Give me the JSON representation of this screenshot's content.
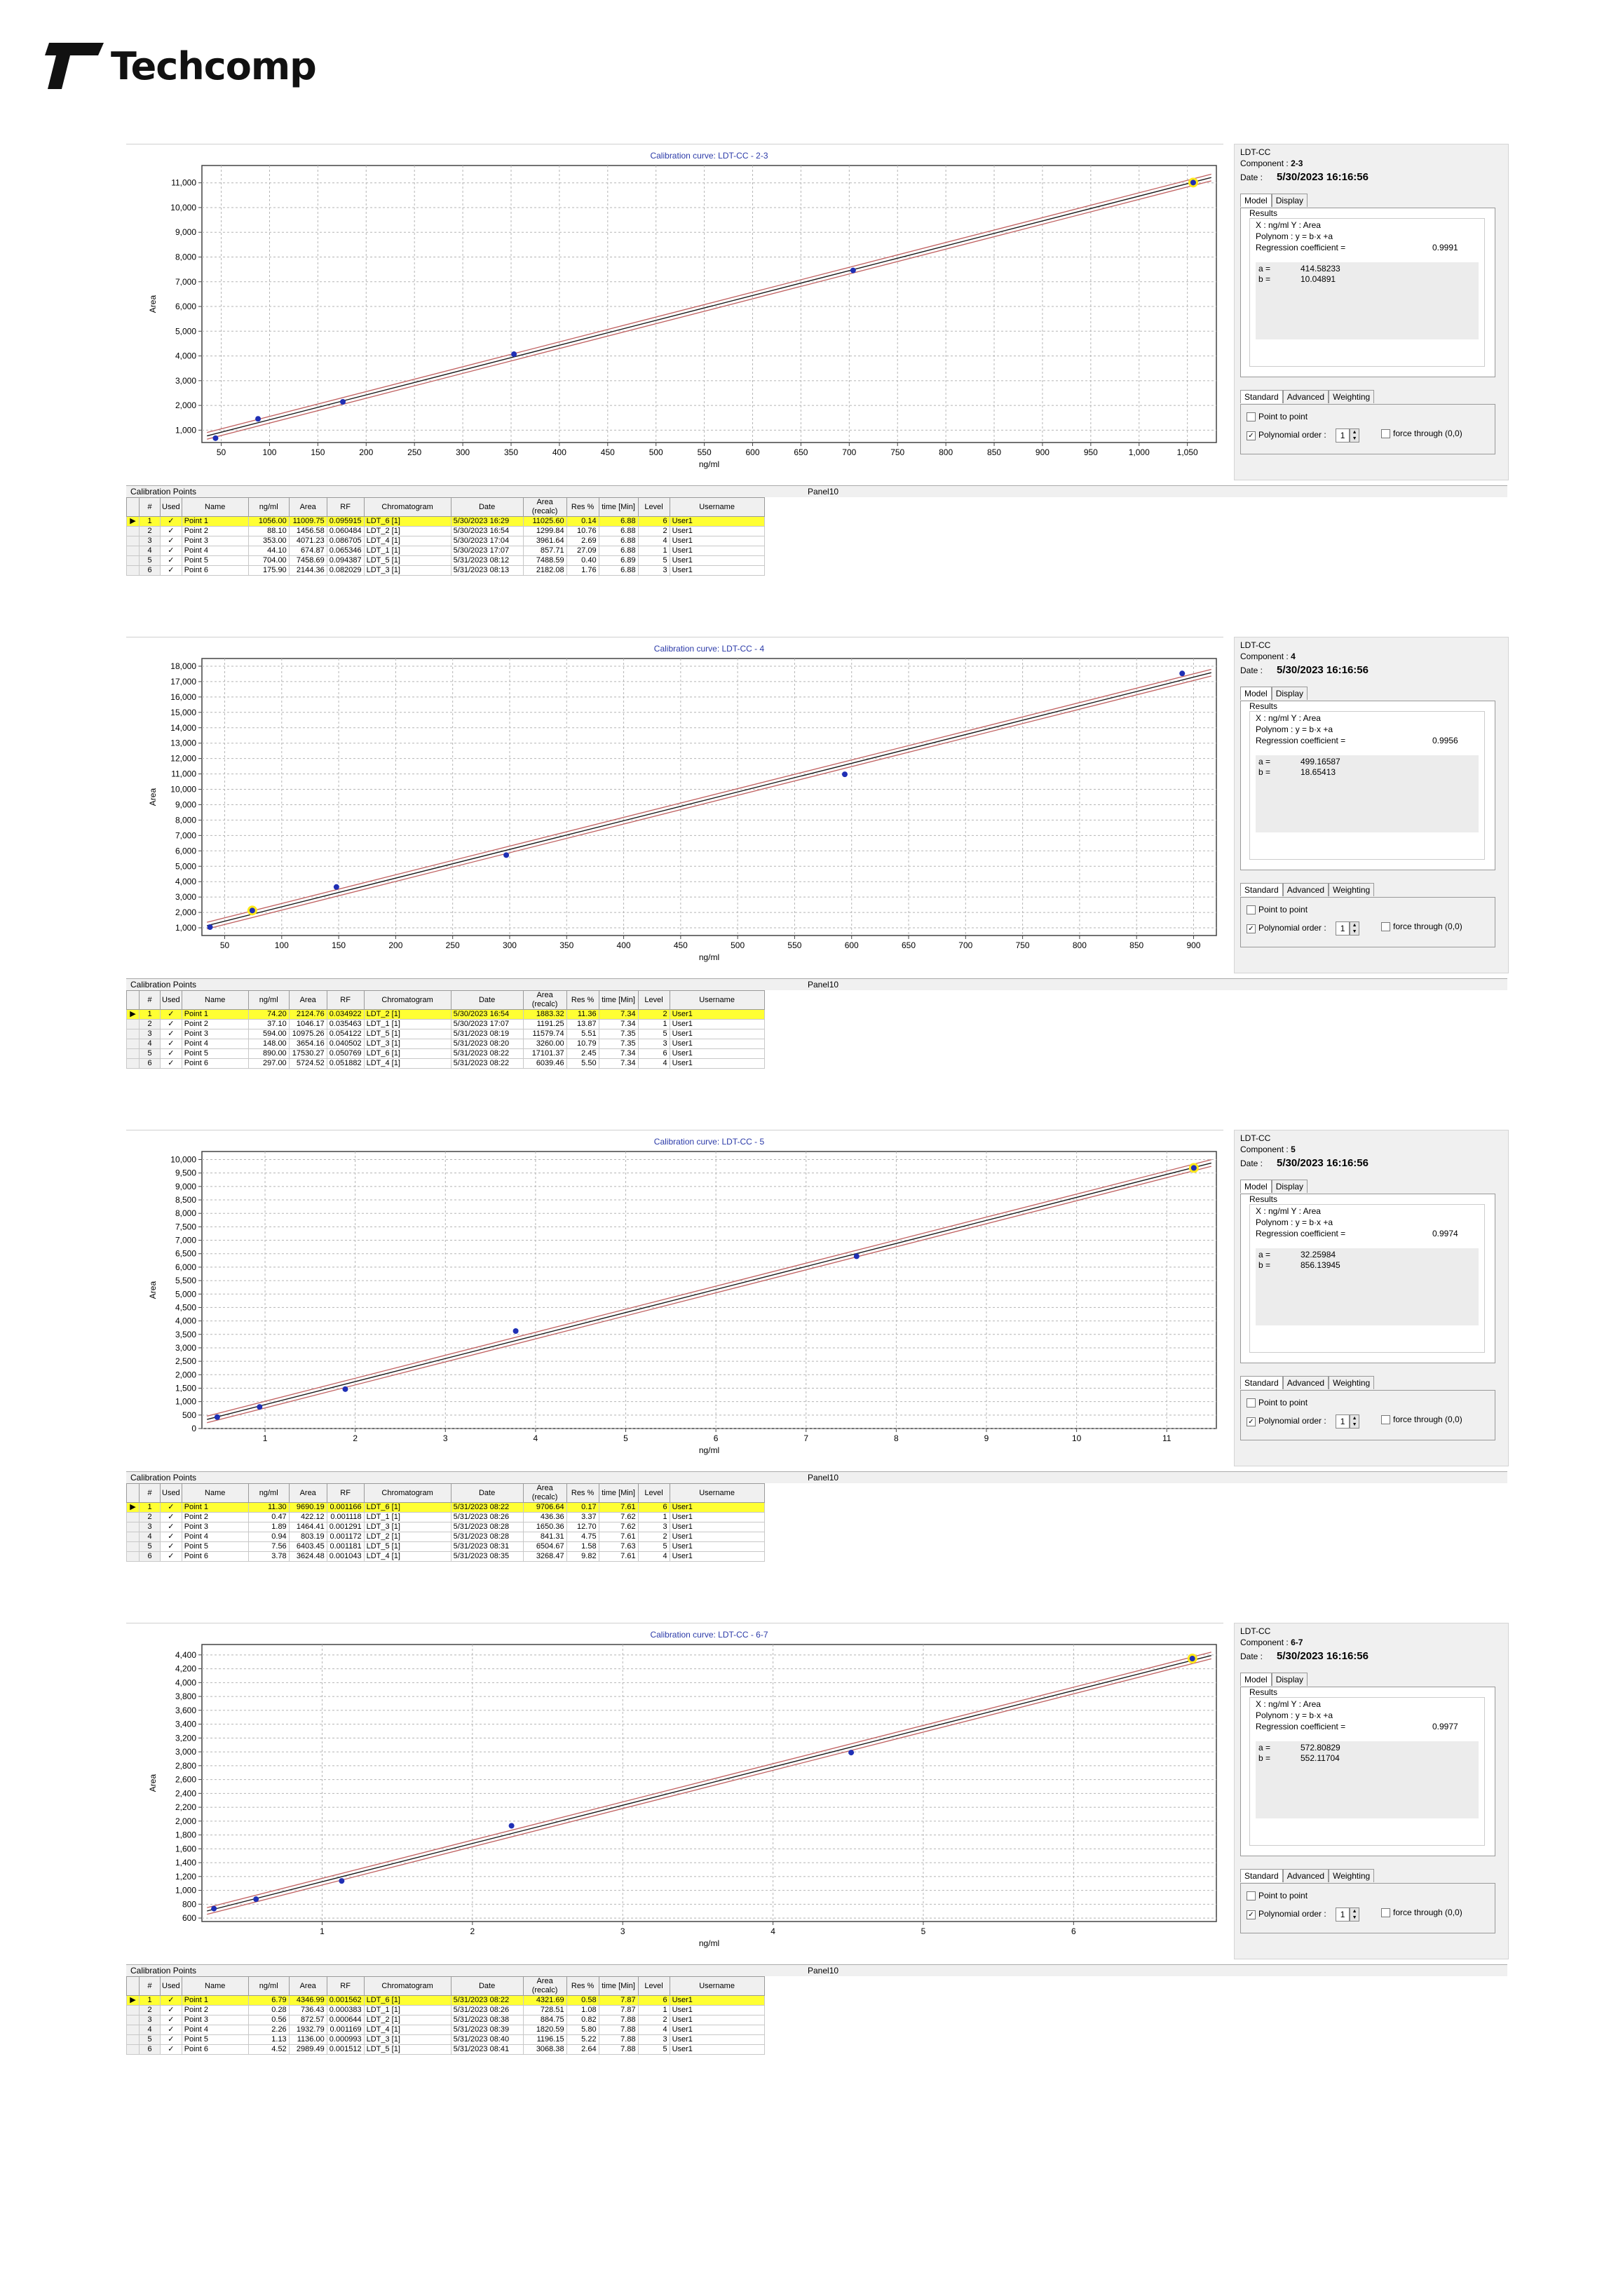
{
  "brand": {
    "name": "Techcomp"
  },
  "columns": [
    "#",
    "Used",
    "Name",
    "ng/ml",
    "Area",
    "RF",
    "Chromatogram",
    "Date",
    "Area (recalc)",
    "Res %",
    "time [Min]",
    "Level",
    "Username"
  ],
  "labels": {
    "calibration_points": "Calibration Points",
    "panel": "Panel10",
    "header": "LDT-CC",
    "component_prefix": "Component :",
    "date_prefix": "Date :",
    "tab_model": "Model",
    "tab_display": "Display",
    "results": "Results",
    "axes": "X : ng/ml   Y : Area",
    "polynom": "Polynom : y = b·x +a",
    "regression_label": "Regression coefficient =",
    "a_label": "a =",
    "b_label": "b =",
    "tab_standard": "Standard",
    "tab_advanced": "Advanced",
    "tab_weighting": "Weighting",
    "point_to_point": "Point to point",
    "polynomial_order": "Polynomial order :",
    "force_through": "force through (0,0)",
    "order_value": "1"
  },
  "blocks": [
    {
      "component": "2-3",
      "date": "5/30/2023 16:16:56",
      "regression": "0.9991",
      "a": "414.58233",
      "b": "10.04891",
      "chart_data": {
        "type": "scatter",
        "title": "Calibration curve: LDT-CC - 2-3",
        "xlabel": "ng/ml",
        "ylabel": "Area",
        "xlim": [
          30,
          1080
        ],
        "ylim": [
          500,
          11700
        ],
        "xticks": [
          50,
          100,
          150,
          200,
          250,
          300,
          350,
          400,
          450,
          500,
          550,
          600,
          650,
          700,
          750,
          800,
          850,
          900,
          950,
          1000,
          1050
        ],
        "yticks": [
          1000,
          2000,
          3000,
          4000,
          5000,
          6000,
          7000,
          8000,
          9000,
          10000,
          11000
        ],
        "grid": true,
        "fit": {
          "a": 414.58233,
          "b": 10.04891
        },
        "points": [
          {
            "x": 1056.0,
            "y": 11009.75,
            "selected": true
          },
          {
            "x": 88.1,
            "y": 1456.58,
            "selected": false
          },
          {
            "x": 353.0,
            "y": 4071.23,
            "selected": false
          },
          {
            "x": 44.1,
            "y": 674.87,
            "selected": false
          },
          {
            "x": 704.0,
            "y": 7458.69,
            "selected": false
          },
          {
            "x": 175.9,
            "y": 2144.36,
            "selected": false
          }
        ]
      },
      "rows": [
        [
          "1",
          "✓",
          "Point 1",
          "1056.00",
          "11009.75",
          "0.095915",
          "LDT_6 [1]",
          "5/30/2023 16:29",
          "11025.60",
          "0.14",
          "6.88",
          "6",
          "User1"
        ],
        [
          "2",
          "✓",
          "Point 2",
          "88.10",
          "1456.58",
          "0.060484",
          "LDT_2 [1]",
          "5/30/2023 16:54",
          "1299.84",
          "10.76",
          "6.88",
          "2",
          "User1"
        ],
        [
          "3",
          "✓",
          "Point 3",
          "353.00",
          "4071.23",
          "0.086705",
          "LDT_4 [1]",
          "5/30/2023 17:04",
          "3961.64",
          "2.69",
          "6.88",
          "4",
          "User1"
        ],
        [
          "4",
          "✓",
          "Point 4",
          "44.10",
          "674.87",
          "0.065346",
          "LDT_1 [1]",
          "5/30/2023 17:07",
          "857.71",
          "27.09",
          "6.88",
          "1",
          "User1"
        ],
        [
          "5",
          "✓",
          "Point 5",
          "704.00",
          "7458.69",
          "0.094387",
          "LDT_5 [1]",
          "5/31/2023 08:12",
          "7488.59",
          "0.40",
          "6.89",
          "5",
          "User1"
        ],
        [
          "6",
          "✓",
          "Point 6",
          "175.90",
          "2144.36",
          "0.082029",
          "LDT_3 [1]",
          "5/31/2023 08:13",
          "2182.08",
          "1.76",
          "6.88",
          "3",
          "User1"
        ]
      ]
    },
    {
      "component": "4",
      "date": "5/30/2023 16:16:56",
      "regression": "0.9956",
      "a": "499.16587",
      "b": "18.65413",
      "chart_data": {
        "type": "scatter",
        "title": "Calibration curve: LDT-CC - 4",
        "xlabel": "ng/ml",
        "ylabel": "Area",
        "xlim": [
          30,
          920
        ],
        "ylim": [
          500,
          18500
        ],
        "xticks": [
          50,
          100,
          150,
          200,
          250,
          300,
          350,
          400,
          450,
          500,
          550,
          600,
          650,
          700,
          750,
          800,
          850,
          900
        ],
        "yticks": [
          1000,
          2000,
          3000,
          4000,
          5000,
          6000,
          7000,
          8000,
          9000,
          10000,
          11000,
          12000,
          13000,
          14000,
          15000,
          16000,
          17000,
          18000
        ],
        "grid": true,
        "fit": {
          "a": 499.16587,
          "b": 18.65413
        },
        "points": [
          {
            "x": 74.2,
            "y": 2124.76,
            "selected": true
          },
          {
            "x": 37.1,
            "y": 1046.17,
            "selected": false
          },
          {
            "x": 594.0,
            "y": 10975.26,
            "selected": false
          },
          {
            "x": 148.0,
            "y": 3654.16,
            "selected": false
          },
          {
            "x": 890.0,
            "y": 17530.27,
            "selected": false
          },
          {
            "x": 297.0,
            "y": 5724.52,
            "selected": false
          }
        ]
      },
      "rows": [
        [
          "1",
          "✓",
          "Point 1",
          "74.20",
          "2124.76",
          "0.034922",
          "LDT_2 [1]",
          "5/30/2023 16:54",
          "1883.32",
          "11.36",
          "7.34",
          "2",
          "User1"
        ],
        [
          "2",
          "✓",
          "Point 2",
          "37.10",
          "1046.17",
          "0.035463",
          "LDT_1 [1]",
          "5/30/2023 17:07",
          "1191.25",
          "13.87",
          "7.34",
          "1",
          "User1"
        ],
        [
          "3",
          "✓",
          "Point 3",
          "594.00",
          "10975.26",
          "0.054122",
          "LDT_5 [1]",
          "5/31/2023 08:19",
          "11579.74",
          "5.51",
          "7.35",
          "5",
          "User1"
        ],
        [
          "4",
          "✓",
          "Point 4",
          "148.00",
          "3654.16",
          "0.040502",
          "LDT_3 [1]",
          "5/31/2023 08:20",
          "3260.00",
          "10.79",
          "7.35",
          "3",
          "User1"
        ],
        [
          "5",
          "✓",
          "Point 5",
          "890.00",
          "17530.27",
          "0.050769",
          "LDT_6 [1]",
          "5/31/2023 08:22",
          "17101.37",
          "2.45",
          "7.34",
          "6",
          "User1"
        ],
        [
          "6",
          "✓",
          "Point 6",
          "297.00",
          "5724.52",
          "0.051882",
          "LDT_4 [1]",
          "5/31/2023 08:22",
          "6039.46",
          "5.50",
          "7.34",
          "4",
          "User1"
        ]
      ]
    },
    {
      "component": "5",
      "date": "5/30/2023 16:16:56",
      "regression": "0.9974",
      "a": "32.25984",
      "b": "856.13945",
      "chart_data": {
        "type": "scatter",
        "title": "Calibration curve: LDT-CC - 5",
        "xlabel": "ng/ml",
        "ylabel": "Area",
        "xlim": [
          0.3,
          11.55
        ],
        "ylim": [
          0,
          10300
        ],
        "xticks": [
          1,
          2,
          3,
          4,
          5,
          6,
          7,
          8,
          9,
          10,
          11
        ],
        "yticks": [
          0,
          500,
          1000,
          1500,
          2000,
          2500,
          3000,
          3500,
          4000,
          4500,
          5000,
          5500,
          6000,
          6500,
          7000,
          7500,
          8000,
          8500,
          9000,
          9500,
          10000
        ],
        "grid": true,
        "fit": {
          "a": 32.25984,
          "b": 856.13945
        },
        "points": [
          {
            "x": 11.3,
            "y": 9690.19,
            "selected": true
          },
          {
            "x": 0.47,
            "y": 422.12,
            "selected": false
          },
          {
            "x": 1.89,
            "y": 1464.41,
            "selected": false
          },
          {
            "x": 0.94,
            "y": 803.19,
            "selected": false
          },
          {
            "x": 7.56,
            "y": 6403.45,
            "selected": false
          },
          {
            "x": 3.78,
            "y": 3624.48,
            "selected": false
          }
        ]
      },
      "rows": [
        [
          "1",
          "✓",
          "Point 1",
          "11.30",
          "9690.19",
          "0.001166",
          "LDT_6 [1]",
          "5/31/2023 08:22",
          "9706.64",
          "0.17",
          "7.61",
          "6",
          "User1"
        ],
        [
          "2",
          "✓",
          "Point 2",
          "0.47",
          "422.12",
          "0.001118",
          "LDT_1 [1]",
          "5/31/2023 08:26",
          "436.36",
          "3.37",
          "7.62",
          "1",
          "User1"
        ],
        [
          "3",
          "✓",
          "Point 3",
          "1.89",
          "1464.41",
          "0.001291",
          "LDT_3 [1]",
          "5/31/2023 08:28",
          "1650.36",
          "12.70",
          "7.62",
          "3",
          "User1"
        ],
        [
          "4",
          "✓",
          "Point 4",
          "0.94",
          "803.19",
          "0.001172",
          "LDT_2 [1]",
          "5/31/2023 08:28",
          "841.31",
          "4.75",
          "7.61",
          "2",
          "User1"
        ],
        [
          "5",
          "✓",
          "Point 5",
          "7.56",
          "6403.45",
          "0.001181",
          "LDT_5 [1]",
          "5/31/2023 08:31",
          "6504.67",
          "1.58",
          "7.63",
          "5",
          "User1"
        ],
        [
          "6",
          "✓",
          "Point 6",
          "3.78",
          "3624.48",
          "0.001043",
          "LDT_4 [1]",
          "5/31/2023 08:35",
          "3268.47",
          "9.82",
          "7.61",
          "4",
          "User1"
        ]
      ]
    },
    {
      "component": "6-7",
      "date": "5/30/2023 16:16:56",
      "regression": "0.9977",
      "a": "572.80829",
      "b": "552.11704",
      "chart_data": {
        "type": "scatter",
        "title": "Calibration curve: LDT-CC - 6-7",
        "xlabel": "ng/ml",
        "ylabel": "Area",
        "xlim": [
          0.2,
          6.95
        ],
        "ylim": [
          550,
          4550
        ],
        "xticks": [
          1,
          2,
          3,
          4,
          5,
          6
        ],
        "yticks": [
          600,
          800,
          1000,
          1200,
          1400,
          1600,
          1800,
          2000,
          2200,
          2400,
          2600,
          2800,
          3000,
          3200,
          3400,
          3600,
          3800,
          4000,
          4200,
          4400
        ],
        "grid": true,
        "fit": {
          "a": 572.80829,
          "b": 552.11704
        },
        "points": [
          {
            "x": 6.79,
            "y": 4346.99,
            "selected": true
          },
          {
            "x": 0.28,
            "y": 736.43,
            "selected": false
          },
          {
            "x": 0.56,
            "y": 872.57,
            "selected": false
          },
          {
            "x": 2.26,
            "y": 1932.79,
            "selected": false
          },
          {
            "x": 1.13,
            "y": 1136.0,
            "selected": false
          },
          {
            "x": 4.52,
            "y": 2989.49,
            "selected": false
          }
        ]
      },
      "rows": [
        [
          "1",
          "✓",
          "Point 1",
          "6.79",
          "4346.99",
          "0.001562",
          "LDT_6 [1]",
          "5/31/2023 08:22",
          "4321.69",
          "0.58",
          "7.87",
          "6",
          "User1"
        ],
        [
          "2",
          "✓",
          "Point 2",
          "0.28",
          "736.43",
          "0.000383",
          "LDT_1 [1]",
          "5/31/2023 08:26",
          "728.51",
          "1.08",
          "7.87",
          "1",
          "User1"
        ],
        [
          "3",
          "✓",
          "Point 3",
          "0.56",
          "872.57",
          "0.000644",
          "LDT_2 [1]",
          "5/31/2023 08:38",
          "884.75",
          "0.82",
          "7.88",
          "2",
          "User1"
        ],
        [
          "4",
          "✓",
          "Point 4",
          "2.26",
          "1932.79",
          "0.001169",
          "LDT_4 [1]",
          "5/31/2023 08:39",
          "1820.59",
          "5.80",
          "7.88",
          "4",
          "User1"
        ],
        [
          "5",
          "✓",
          "Point 5",
          "1.13",
          "1136.00",
          "0.000993",
          "LDT_3 [1]",
          "5/31/2023 08:40",
          "1196.15",
          "5.22",
          "7.88",
          "3",
          "User1"
        ],
        [
          "6",
          "✓",
          "Point 6",
          "4.52",
          "2989.49",
          "0.001512",
          "LDT_5 [1]",
          "5/31/2023 08:41",
          "3068.38",
          "2.64",
          "7.88",
          "5",
          "User1"
        ]
      ]
    }
  ]
}
